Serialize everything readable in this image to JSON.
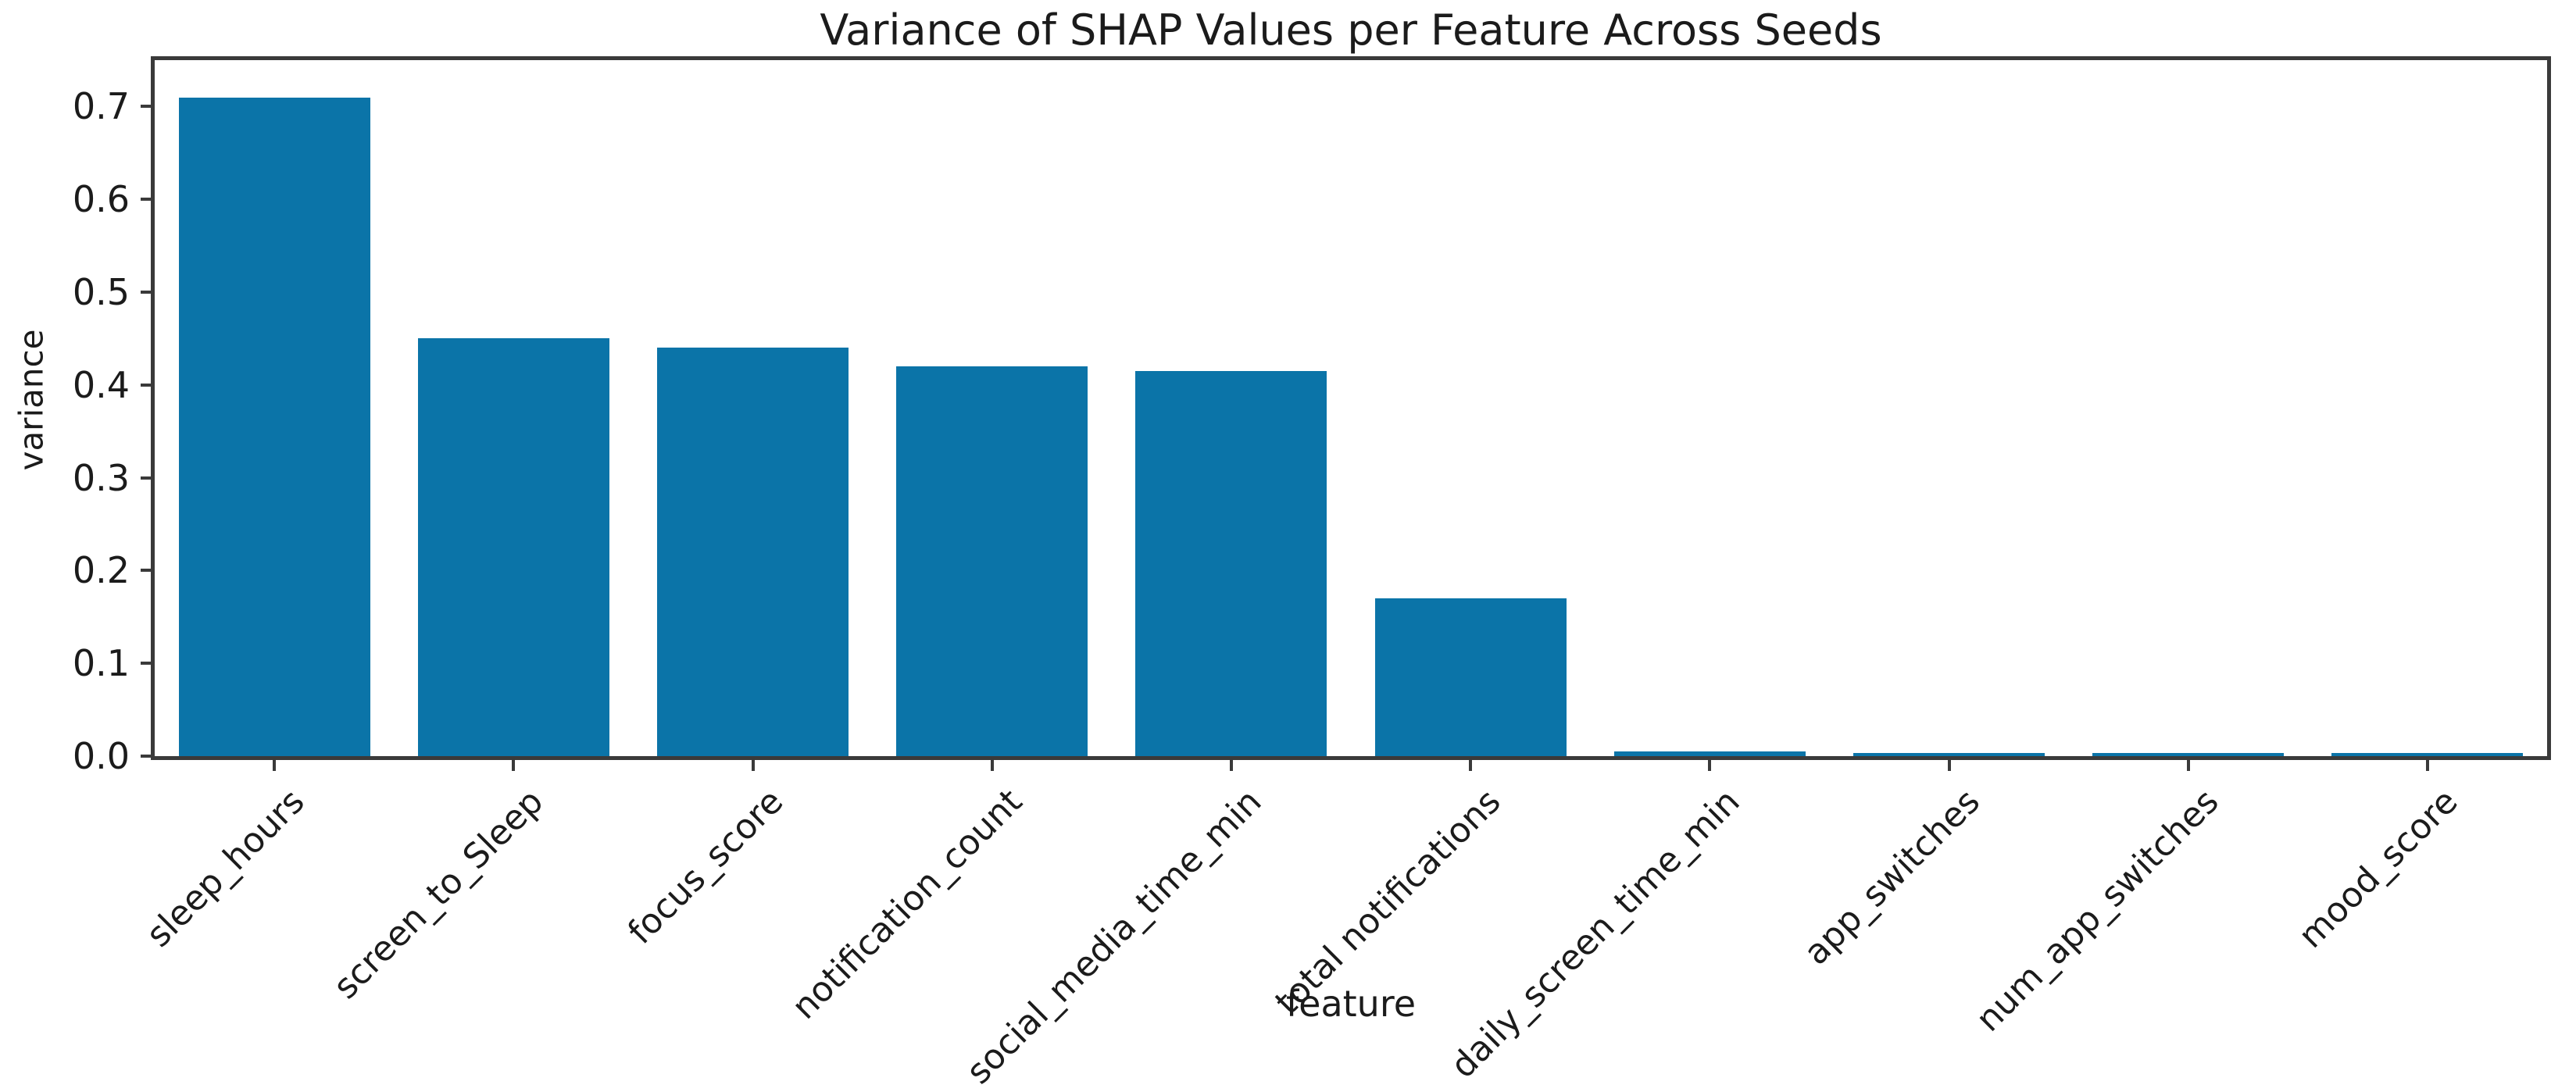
{
  "chart_data": {
    "type": "bar",
    "title": "Variance of SHAP Values per Feature Across Seeds",
    "xlabel": "feature",
    "ylabel": "variance",
    "categories": [
      "sleep_hours",
      "screen_to_Sleep",
      "focus_score",
      "notification_count",
      "social_media_time_min",
      "total notifications",
      "daily_screen_time_min",
      "app_switches",
      "num_app_switches",
      "mood_score"
    ],
    "values": [
      0.71,
      0.45,
      0.44,
      0.42,
      0.415,
      0.17,
      0.005,
      0.003,
      0.003,
      0.003
    ],
    "ylim": [
      0,
      0.75
    ],
    "ytick_values": [
      0.0,
      0.1,
      0.2,
      0.3,
      0.4,
      0.5,
      0.6,
      0.7
    ],
    "ytick_labels": [
      "0.0",
      "0.1",
      "0.2",
      "0.3",
      "0.4",
      "0.5",
      "0.6",
      "0.7"
    ],
    "bar_color": "#0b74a8",
    "axis_color": "#3a3a3a",
    "text_color": "#1b1b1b",
    "grid": false,
    "legend": false,
    "bar_width_fraction": 0.8,
    "xtick_rotation_deg": 45
  }
}
